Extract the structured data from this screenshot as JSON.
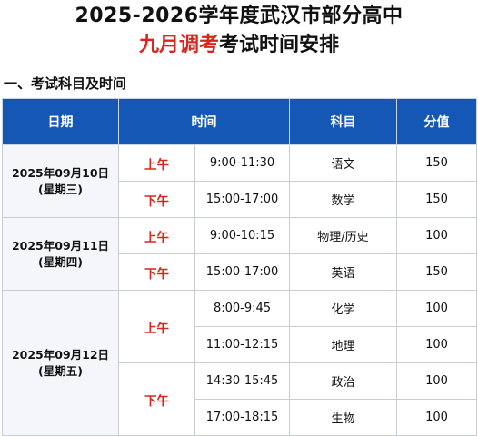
{
  "title": {
    "line1": "2025-2026学年度武汉市部分高中",
    "line2_red": "九月调考",
    "line2_rest": "考试时间安排"
  },
  "section_heading": "一、考试科目及时间",
  "table": {
    "headers": {
      "date": "日期",
      "time": "时间",
      "subject": "科目",
      "score": "分值"
    },
    "days": [
      {
        "date": "2025年09月10日",
        "weekday": "(星期三)"
      },
      {
        "date": "2025年09月11日",
        "weekday": "(星期四)"
      },
      {
        "date": "2025年09月12日",
        "weekday": "(星期五)"
      }
    ],
    "periods": {
      "am": "上午",
      "pm": "下午"
    },
    "rows": [
      {
        "time": "9:00-11:30",
        "subject": "语文",
        "score": "150"
      },
      {
        "time": "15:00-17:00",
        "subject": "数学",
        "score": "150"
      },
      {
        "time": "9:00-10:15",
        "subject": "物理/历史",
        "score": "100"
      },
      {
        "time": "15:00-17:00",
        "subject": "英语",
        "score": "150"
      },
      {
        "time": "8:00-9:45",
        "subject": "化学",
        "score": "100"
      },
      {
        "time": "11:00-12:15",
        "subject": "地理",
        "score": "100"
      },
      {
        "time": "14:30-15:45",
        "subject": "政治",
        "score": "100"
      },
      {
        "time": "17:00-18:15",
        "subject": "生物",
        "score": "100"
      }
    ]
  }
}
